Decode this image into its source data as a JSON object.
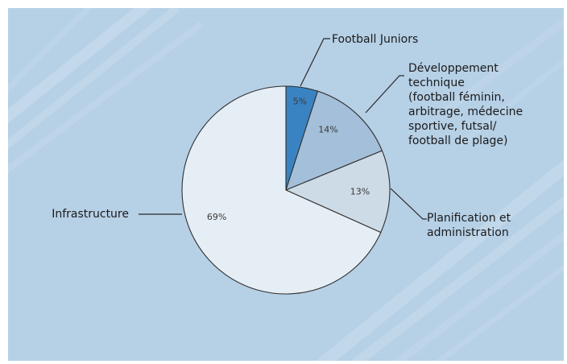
{
  "chart_data": {
    "type": "pie",
    "start_angle_deg": 0,
    "direction": "clockwise",
    "slices": [
      {
        "label_lines": [
          "Football Juniors"
        ],
        "value": 5,
        "value_label": "5%",
        "color": "#3a83c2"
      },
      {
        "label_lines": [
          "Développement",
          "technique",
          "(football féminin,",
          "arbitrage, médecine",
          "sportive, futsal/",
          "football de plage)"
        ],
        "value": 14,
        "value_label": "14%",
        "color": "#a3bfd9"
      },
      {
        "label_lines": [
          "Planification et",
          "administration"
        ],
        "value": 13,
        "value_label": "13%",
        "color": "#cddbe7"
      },
      {
        "label_lines": [
          "Infrastructure"
        ],
        "value": 69,
        "value_label": "69%",
        "color": "#e6eef5"
      }
    ]
  },
  "colors": {
    "background": "#b6d0e6",
    "outline": "#303030",
    "text": "#1b1b1b"
  }
}
